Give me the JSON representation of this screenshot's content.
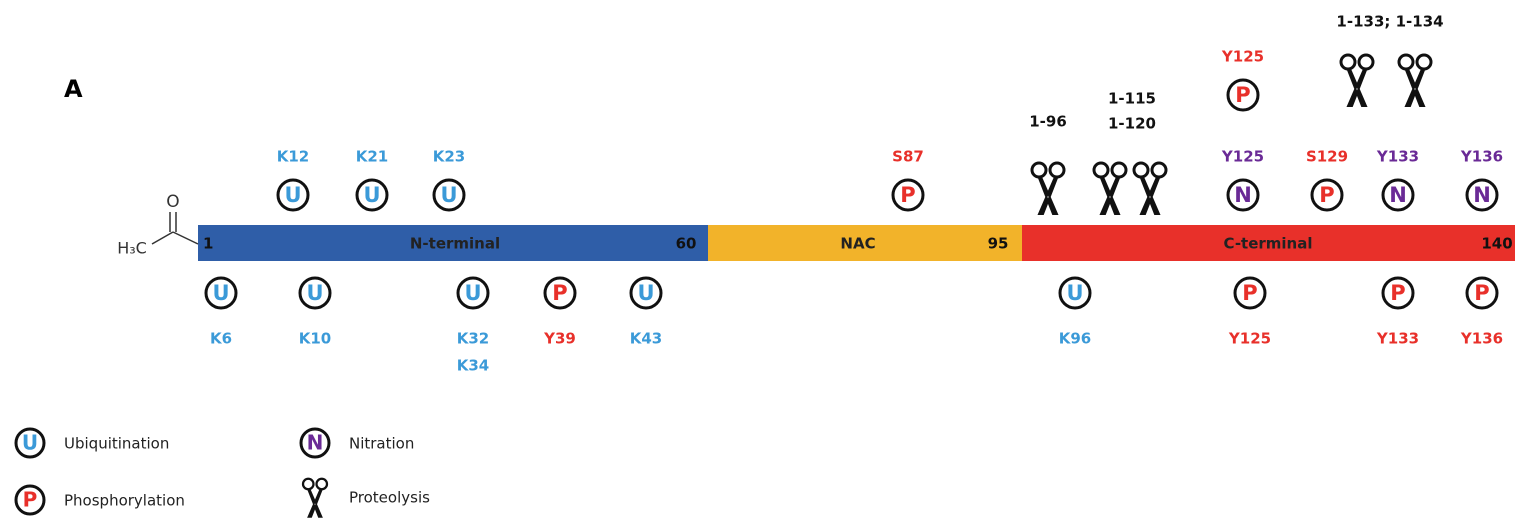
{
  "panel_label": "A",
  "acetyl": {
    "oxygen": "O",
    "methyl": "H₃C"
  },
  "domains": [
    {
      "label": "N-terminal",
      "start": "1",
      "end": "60"
    },
    {
      "label": "NAC",
      "end": "95"
    },
    {
      "label": "C-terminal",
      "end": "140"
    }
  ],
  "sites_above": [
    {
      "symbol": "U",
      "labels": [
        "K12"
      ]
    },
    {
      "symbol": "U",
      "labels": [
        "K21"
      ]
    },
    {
      "symbol": "U",
      "labels": [
        "K23"
      ]
    },
    {
      "symbol": "P",
      "labels": [
        "S87"
      ]
    },
    {
      "symbol": "N",
      "labels": [
        "Y125"
      ]
    },
    {
      "symbol": "P",
      "labels": [
        "S129"
      ]
    },
    {
      "symbol": "N",
      "labels": [
        "Y133"
      ]
    },
    {
      "symbol": "N",
      "labels": [
        "Y136"
      ]
    },
    {
      "symbol": "P",
      "labels": [
        "Y125"
      ]
    }
  ],
  "sites_below": [
    {
      "symbol": "U",
      "labels": [
        "K6"
      ]
    },
    {
      "symbol": "U",
      "labels": [
        "K10"
      ]
    },
    {
      "symbol": "U",
      "labels": [
        "K32",
        "K34"
      ]
    },
    {
      "symbol": "P",
      "labels": [
        "Y39"
      ]
    },
    {
      "symbol": "U",
      "labels": [
        "K43"
      ]
    },
    {
      "symbol": "U",
      "labels": [
        "K96"
      ]
    },
    {
      "symbol": "P",
      "labels": [
        "Y125"
      ]
    },
    {
      "symbol": "P",
      "labels": [
        "Y133"
      ]
    },
    {
      "symbol": "P",
      "labels": [
        "Y136"
      ]
    }
  ],
  "cleavage_sites": [
    {
      "labels": [
        "1-96"
      ]
    },
    {
      "labels": [
        "1-115",
        "1-120"
      ]
    },
    {
      "labels": [
        "1-133; 1-134"
      ]
    }
  ],
  "legend": [
    {
      "symbol": "U",
      "label": "Ubiquitination"
    },
    {
      "symbol": "P",
      "label": "Phosphorylation"
    },
    {
      "symbol": "N",
      "label": "Nitration"
    },
    {
      "label": "Proteolysis"
    }
  ]
}
